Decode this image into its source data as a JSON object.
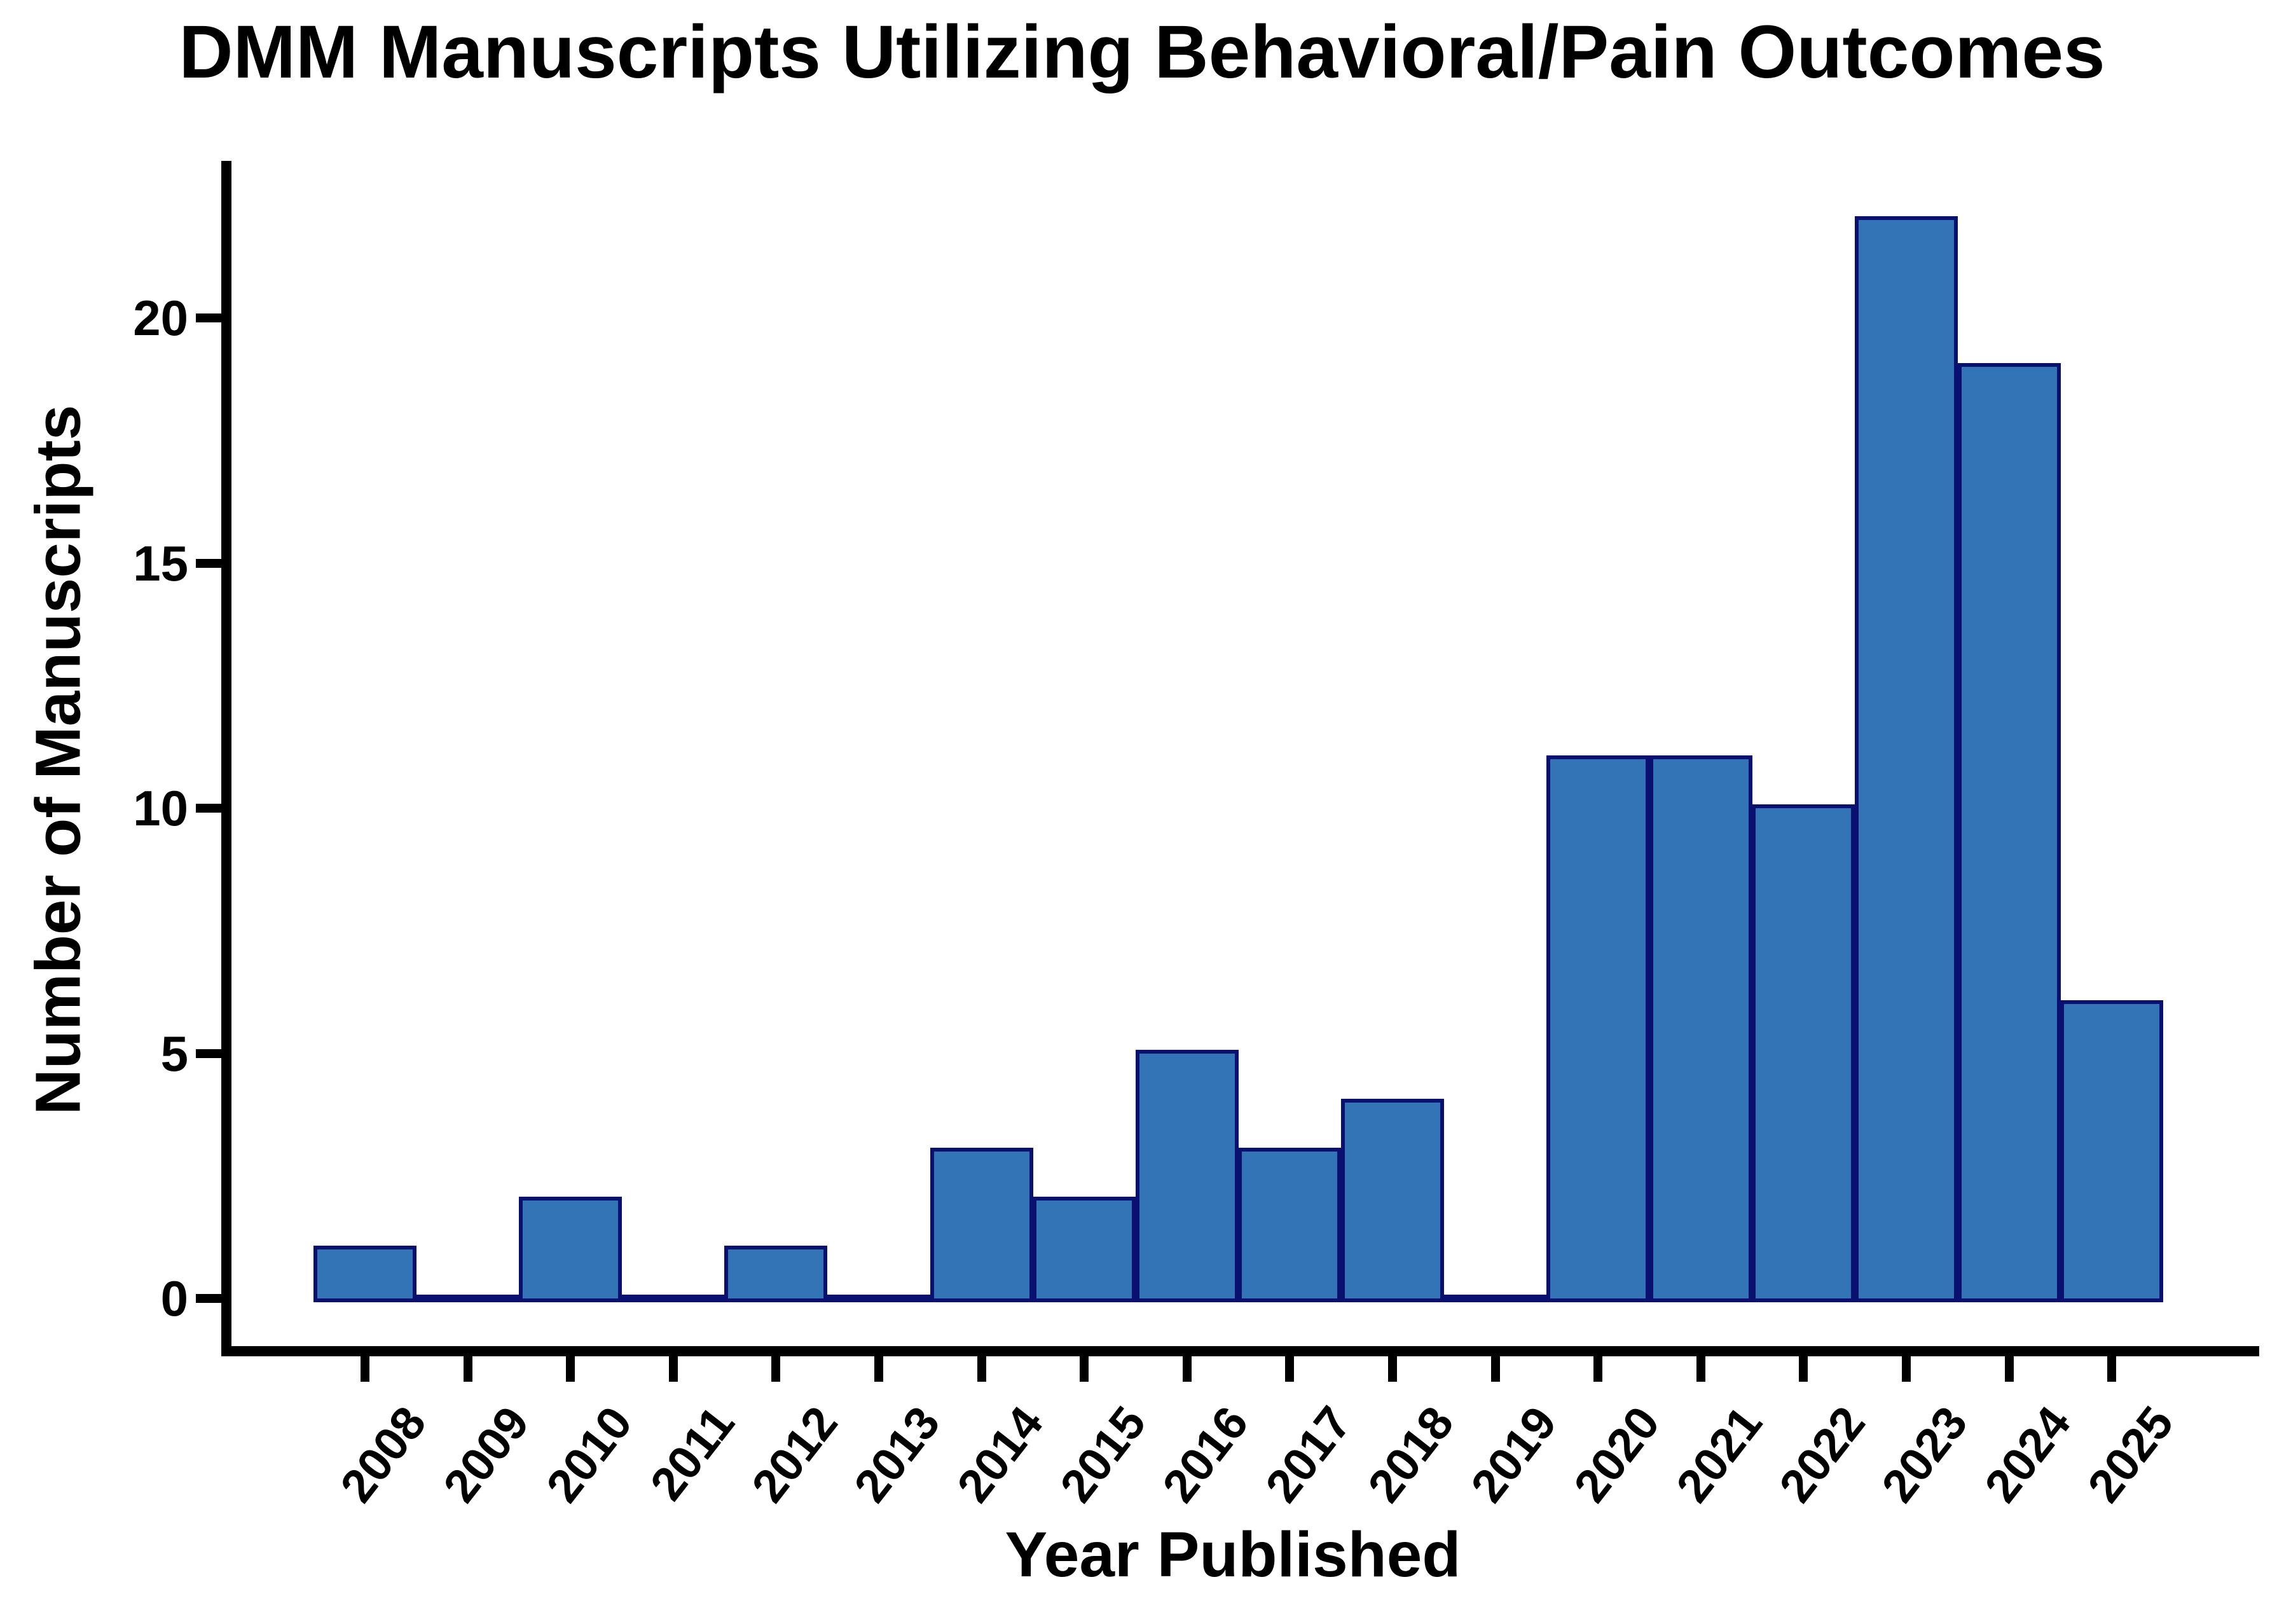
{
  "title": "DMM Manuscripts Utilizing Behavioral/Pain Outcomes",
  "chart_data": {
    "type": "bar",
    "title": "DMM Manuscripts Utilizing Behavioral/Pain Outcomes",
    "xlabel": "Year Published",
    "ylabel": "Number of Manuscripts",
    "categories": [
      "2008",
      "2009",
      "2010",
      "2011",
      "2012",
      "2013",
      "2014",
      "2015",
      "2016",
      "2017",
      "2018",
      "2019",
      "2020",
      "2021",
      "2022",
      "2023",
      "2024",
      "2025"
    ],
    "values": [
      1,
      0,
      2,
      0,
      1,
      0,
      3,
      2,
      5,
      3,
      4,
      0,
      11,
      11,
      10,
      22,
      19,
      6
    ],
    "yticks": [
      0,
      5,
      10,
      15,
      20
    ],
    "ylim": [
      0,
      23
    ],
    "grid": false,
    "legend": null,
    "bar_orientation": "vertical",
    "x_label_rotation_deg": -52,
    "colors": {
      "bar_fill": "#3274B6",
      "bar_border": "#0A1070",
      "axis": "#000000",
      "text": "#000000",
      "background": "#FFFFFF"
    }
  }
}
